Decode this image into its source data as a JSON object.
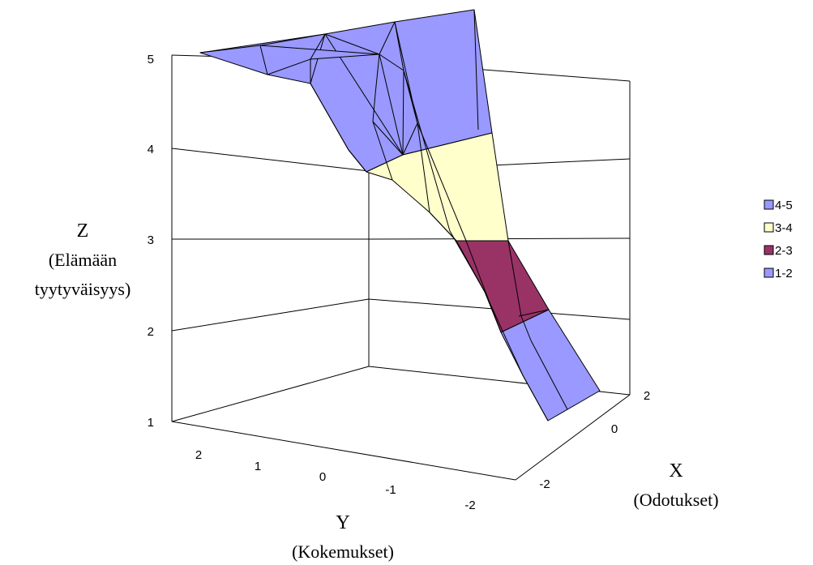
{
  "chart_data": {
    "type": "surface",
    "axes": {
      "z": {
        "title": "Z",
        "subtitle_lines": [
          "(Elämään",
          "tyytyväisyys)"
        ],
        "ticks": [
          "1",
          "2",
          "3",
          "4",
          "5"
        ],
        "range": [
          1,
          5
        ]
      },
      "y": {
        "title": "Y",
        "subtitle": "(Kokemukset)",
        "ticks": [
          "2",
          "1",
          "0",
          "-1",
          "-2"
        ],
        "range": [
          -2,
          2
        ]
      },
      "x": {
        "title": "X",
        "subtitle": "(Odotukset)",
        "ticks": [
          "2",
          "0",
          "-2"
        ],
        "range": [
          -2,
          2
        ]
      }
    },
    "grid": true,
    "legend": {
      "position": "right",
      "entries": [
        {
          "label": "4-5",
          "color": "#9999ff"
        },
        {
          "label": "3-4",
          "color": "#ffffcc"
        },
        {
          "label": "2-3",
          "color": "#993366"
        },
        {
          "label": "1-2",
          "color": "#9999ff"
        }
      ]
    },
    "bands": [
      {
        "range": "4-5",
        "color": "#9999ff"
      },
      {
        "range": "3-4",
        "color": "#ffffcc"
      },
      {
        "range": "2-3",
        "color": "#993366"
      },
      {
        "range": "1-2",
        "color": "#9999ff"
      }
    ]
  }
}
